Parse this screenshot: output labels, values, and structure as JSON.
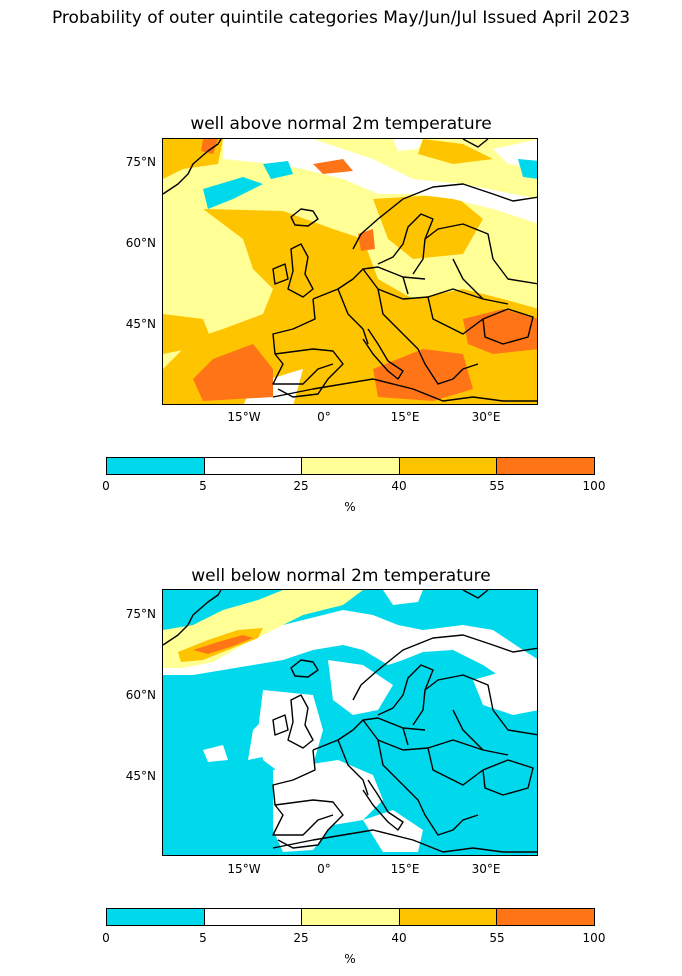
{
  "figure": {
    "title": "Probability of outer quintile categories May/Jun/Jul Issued April 2023"
  },
  "panels": [
    {
      "title": "well above normal 2m temperature",
      "lat_labels": [
        "75°N",
        "60°N",
        "45°N"
      ],
      "lon_labels": [
        "15°W",
        "0°",
        "15°E",
        "30°E"
      ]
    },
    {
      "title": "well below normal 2m temperature",
      "lat_labels": [
        "75°N",
        "60°N",
        "45°N"
      ],
      "lon_labels": [
        "15°W",
        "0°",
        "15°E",
        "30°E"
      ]
    }
  ],
  "colorbar": {
    "bounds": [
      "0",
      "5",
      "25",
      "40",
      "55",
      "100"
    ],
    "colors": [
      "#00d8eb",
      "#ffffff",
      "#ffff96",
      "#ffc400",
      "#ff7417"
    ],
    "unit": "%"
  }
}
